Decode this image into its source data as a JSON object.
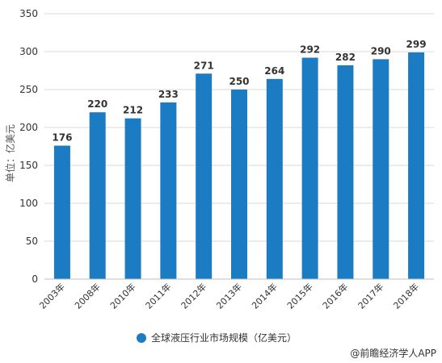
{
  "chart_data": {
    "type": "bar",
    "categories": [
      "2003年",
      "2008年",
      "2010年",
      "2011年",
      "2012年",
      "2013年",
      "2014年",
      "2015年",
      "2016年",
      "2017年",
      "2018年"
    ],
    "series": [
      {
        "name": "全球液压行业市场规模（亿美元）",
        "values": [
          176,
          220,
          212,
          233,
          271,
          250,
          264,
          292,
          282,
          290,
          299
        ]
      }
    ],
    "ylabel": "单位：亿美元",
    "ylim": [
      0,
      350
    ],
    "yticks": [
      0,
      50,
      100,
      150,
      200,
      250,
      300,
      350
    ],
    "grid": true,
    "legend_position": "bottom",
    "colors": {
      "bar": "#1b7bc3",
      "grid": "#d9d9d9",
      "axis": "#bfbfbf"
    }
  },
  "credit": "@前瞻经济学人APP"
}
